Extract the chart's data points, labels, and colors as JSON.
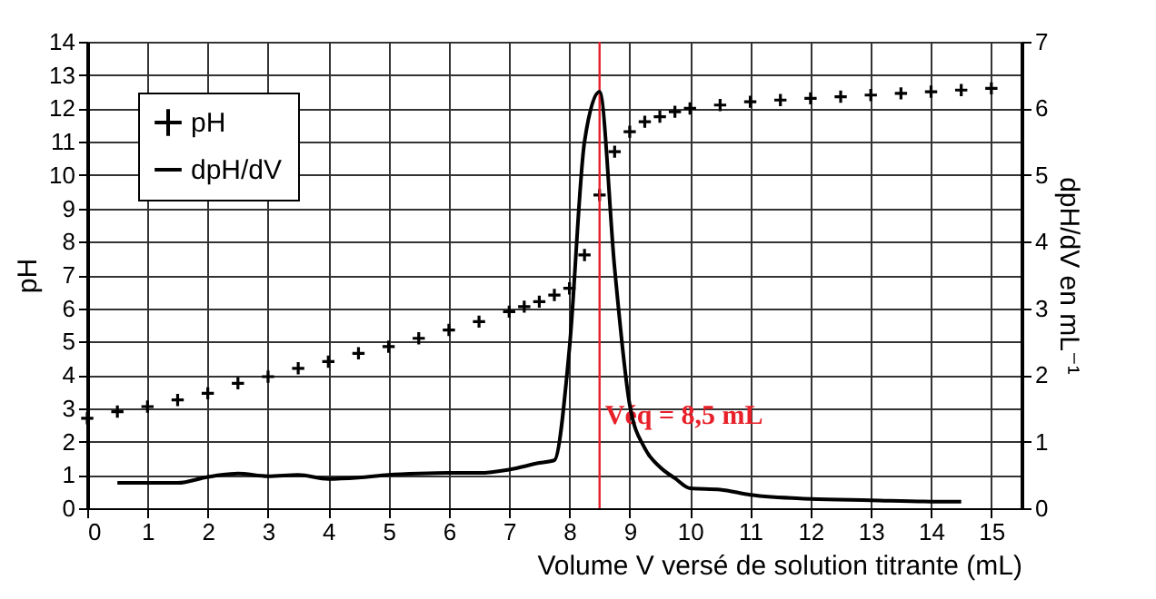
{
  "chart_data": {
    "type": "scatter",
    "xlabel": "Volume V versé de solution titrante (mL)",
    "ylabel": "pH",
    "y2label": "dpH/dV en mL⁻¹",
    "xlim": [
      0,
      15.5
    ],
    "xticks": [
      0,
      1,
      2,
      3,
      4,
      5,
      6,
      7,
      8,
      9,
      10,
      11,
      12,
      13,
      14,
      15
    ],
    "ylim": [
      0,
      14
    ],
    "yticks": [
      0,
      1,
      2,
      3,
      4,
      5,
      6,
      7,
      8,
      9,
      10,
      11,
      12,
      13,
      14
    ],
    "y2lim": [
      0,
      7
    ],
    "y2ticks": [
      0,
      1,
      2,
      3,
      4,
      5,
      6,
      7
    ],
    "grid": true,
    "legend": "top left",
    "series": [
      {
        "name": "pH",
        "marker": "cross",
        "color": "#000000",
        "x": [
          0,
          0.5,
          1,
          1.5,
          2,
          2.5,
          3,
          3.5,
          4,
          4.5,
          5,
          5.5,
          6,
          6.5,
          7,
          7.25,
          7.5,
          7.75,
          8,
          8.25,
          8.5,
          8.75,
          9,
          9.25,
          9.5,
          9.75,
          10,
          10.5,
          11,
          11.5,
          12,
          12.5,
          13,
          13.5,
          14,
          14.5,
          15
        ],
        "values": [
          2.7,
          2.9,
          3.05,
          3.25,
          3.45,
          3.75,
          3.95,
          4.2,
          4.4,
          4.65,
          4.85,
          5.1,
          5.35,
          5.6,
          5.9,
          6.05,
          6.2,
          6.4,
          6.6,
          7.6,
          9.4,
          10.7,
          11.3,
          11.6,
          11.75,
          11.9,
          12.0,
          12.1,
          12.2,
          12.25,
          12.3,
          12.35,
          12.4,
          12.45,
          12.5,
          12.55,
          12.6
        ]
      },
      {
        "name": "dpH/dV",
        "type": "line",
        "axis": "y2",
        "color": "#000000",
        "x": [
          0.5,
          1,
          1.5,
          2,
          2.5,
          3,
          3.5,
          4,
          4.5,
          5,
          5.5,
          6,
          6.5,
          7,
          7.5,
          7.75,
          8,
          8.25,
          8.5,
          8.75,
          9,
          9.25,
          9.5,
          9.75,
          10,
          10.5,
          11,
          12,
          13,
          14,
          14.5
        ],
        "values": [
          0.38,
          0.38,
          0.38,
          0.47,
          0.52,
          0.48,
          0.5,
          0.44,
          0.46,
          0.5,
          0.52,
          0.53,
          0.53,
          0.58,
          0.68,
          0.72,
          2.4,
          5.5,
          6.25,
          3.6,
          1.55,
          0.9,
          0.62,
          0.45,
          0.3,
          0.28,
          0.2,
          0.14,
          0.12,
          0.1,
          0.1
        ]
      }
    ],
    "ref_lines": [
      {
        "axis": "x",
        "value": 8.5,
        "label": "Véq = 8,5 mL",
        "color": "#e8202a"
      }
    ]
  }
}
